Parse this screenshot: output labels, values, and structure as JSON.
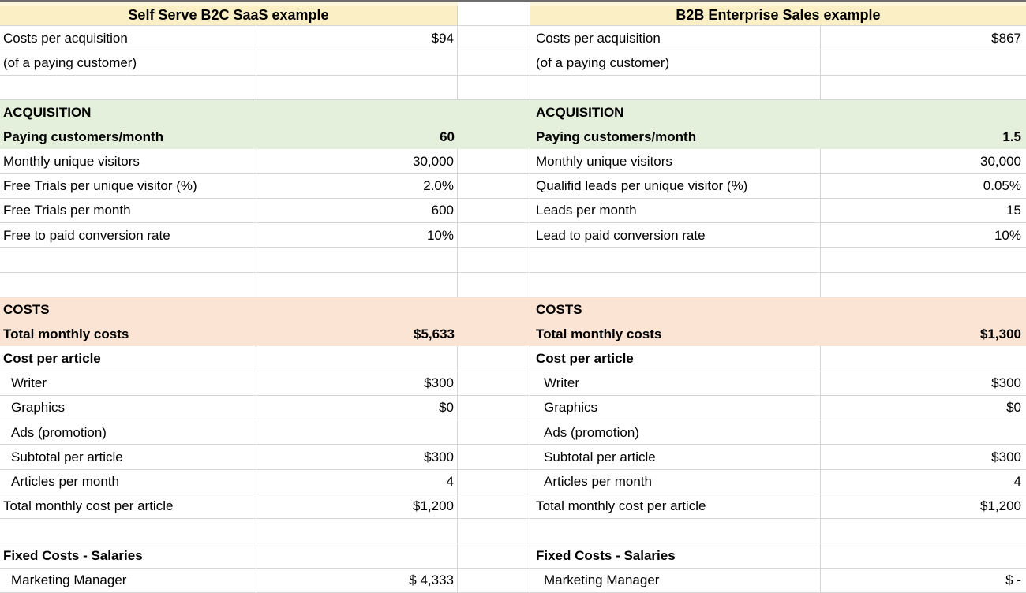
{
  "sheet": {
    "left_title": "Self Serve B2C SaaS example",
    "right_title": "B2B Enterprise Sales example",
    "rows": [
      {
        "band": "white",
        "left": {
          "t": "Costs per acquisition",
          "v": "$94"
        },
        "right": {
          "t": "Costs per acquisition",
          "v": "$867"
        }
      },
      {
        "band": "white",
        "left": {
          "t": "(of a paying customer)",
          "v": ""
        },
        "right": {
          "t": "(of a paying customer)",
          "v": ""
        }
      },
      {
        "band": "white",
        "left": {
          "t": "",
          "v": ""
        },
        "right": {
          "t": "",
          "v": ""
        }
      },
      {
        "band": "green",
        "left": {
          "t": "ACQUISITION",
          "v": "",
          "boldT": true
        },
        "right": {
          "t": "ACQUISITION",
          "v": "",
          "boldT": true
        }
      },
      {
        "band": "green",
        "left": {
          "t": "Paying customers/month",
          "v": "60",
          "boldT": true,
          "boldV": true
        },
        "right": {
          "t": "Paying customers/month",
          "v": "1.5",
          "boldT": true,
          "boldV": true
        }
      },
      {
        "band": "white",
        "left": {
          "t": "Monthly unique visitors",
          "v": "30,000"
        },
        "right": {
          "t": "Monthly unique visitors",
          "v": "30,000"
        }
      },
      {
        "band": "white",
        "left": {
          "t": "Free Trials per unique visitor (%)",
          "v": "2.0%"
        },
        "right": {
          "t": "Qualifid leads per unique visitor (%)",
          "v": "0.05%"
        }
      },
      {
        "band": "white",
        "left": {
          "t": "Free Trials per month",
          "v": "600"
        },
        "right": {
          "t": "Leads per month",
          "v": "15"
        }
      },
      {
        "band": "white",
        "left": {
          "t": "Free to paid conversion rate",
          "v": "10%"
        },
        "right": {
          "t": "Lead to paid conversion rate",
          "v": "10%"
        }
      },
      {
        "band": "white",
        "left": {
          "t": "",
          "v": ""
        },
        "right": {
          "t": "",
          "v": ""
        }
      },
      {
        "band": "white",
        "left": {
          "t": "",
          "v": ""
        },
        "right": {
          "t": "",
          "v": ""
        }
      },
      {
        "band": "peach",
        "left": {
          "t": "COSTS",
          "v": "",
          "boldT": true
        },
        "right": {
          "t": "COSTS",
          "v": "",
          "boldT": true
        }
      },
      {
        "band": "peach",
        "left": {
          "t": "Total monthly costs",
          "v": "$5,633",
          "boldT": true,
          "boldV": true
        },
        "right": {
          "t": "Total monthly costs",
          "v": "$1,300",
          "boldT": true,
          "boldV": true
        }
      },
      {
        "band": "white",
        "left": {
          "t": "Cost per article",
          "v": "",
          "boldT": true
        },
        "right": {
          "t": "Cost per article",
          "v": "",
          "boldT": true
        }
      },
      {
        "band": "white",
        "left": {
          "t": "Writer",
          "v": "$300",
          "indent": true
        },
        "right": {
          "t": "Writer",
          "v": "$300",
          "indent": true
        }
      },
      {
        "band": "white",
        "left": {
          "t": "Graphics",
          "v": "$0",
          "indent": true
        },
        "right": {
          "t": "Graphics",
          "v": "$0",
          "indent": true
        }
      },
      {
        "band": "white",
        "left": {
          "t": "Ads (promotion)",
          "v": "",
          "indent": true
        },
        "right": {
          "t": "Ads (promotion)",
          "v": "",
          "indent": true
        }
      },
      {
        "band": "white",
        "left": {
          "t": "Subtotal per article",
          "v": "$300",
          "indent": true
        },
        "right": {
          "t": "Subtotal per article",
          "v": "$300",
          "indent": true
        }
      },
      {
        "band": "white",
        "left": {
          "t": "Articles per month",
          "v": "4",
          "indent": true
        },
        "right": {
          "t": "Articles per month",
          "v": "4",
          "indent": true
        }
      },
      {
        "band": "white",
        "left": {
          "t": "Total monthly cost per article",
          "v": "$1,200"
        },
        "right": {
          "t": "Total monthly cost per article",
          "v": "$1,200"
        }
      },
      {
        "band": "white",
        "left": {
          "t": "",
          "v": ""
        },
        "right": {
          "t": "",
          "v": ""
        }
      },
      {
        "band": "white",
        "left": {
          "t": "Fixed Costs - Salaries",
          "v": "",
          "boldT": true
        },
        "right": {
          "t": "Fixed Costs - Salaries",
          "v": "",
          "boldT": true
        }
      },
      {
        "band": "white",
        "left": {
          "t": "Marketing Manager",
          "v": "$ 4,333",
          "indent": true
        },
        "right": {
          "t": "Marketing Manager",
          "v": "$ -",
          "indent": true
        }
      }
    ]
  },
  "colors": {
    "title_bg": "#FBEFC6",
    "title_bg_light": "#FDF6DE",
    "green_band": "#E4F0DC",
    "peach_band": "#FBE4D4",
    "grid_line": "#D6D6D6",
    "top_border": "#6E6E6E",
    "cell_bg": "#FFFFFF",
    "text": "#000000"
  }
}
